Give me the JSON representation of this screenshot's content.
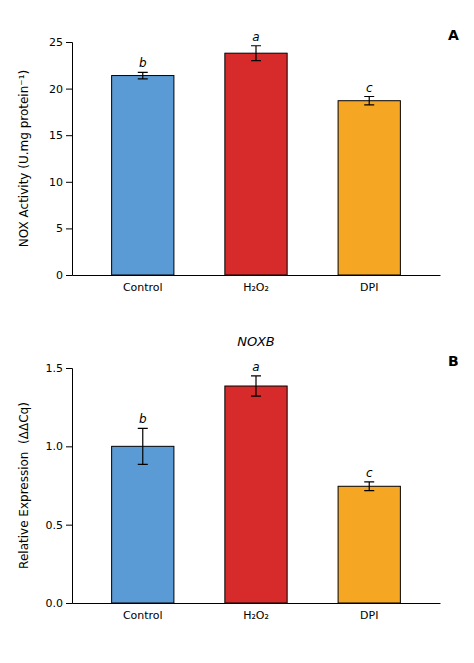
{
  "chart_data": [
    {
      "type": "bar",
      "categories": [
        "Control",
        "H₂O₂",
        "DPI"
      ],
      "values": [
        21.4,
        23.8,
        18.7
      ],
      "errors": [
        0.35,
        0.8,
        0.45
      ],
      "colors": [
        "#5B9BD5",
        "#D72B2B",
        "#F5A623"
      ],
      "ylabel": "NOX Activity (U.mg protein⁻¹)",
      "ylim": [
        0,
        25
      ],
      "yticks": [
        0,
        5,
        10,
        15,
        20,
        25
      ],
      "grid": false,
      "annotations": {
        "panel_label": "A",
        "letters": [
          "b",
          "a",
          "c"
        ]
      }
    },
    {
      "type": "bar",
      "title": "NOXB",
      "categories": [
        "Control",
        "H₂O₂",
        "DPI"
      ],
      "values": [
        1.0,
        1.385,
        0.745
      ],
      "errors": [
        0.115,
        0.065,
        0.028
      ],
      "colors": [
        "#5B9BD5",
        "#D72B2B",
        "#F5A623"
      ],
      "ylabel": "Relative Expression  (ΔΔCq)",
      "ylim": [
        0,
        1.5
      ],
      "yticks": [
        {
          "value": 0,
          "label": "0.0"
        },
        0.5,
        {
          "value": 1,
          "label": "1.0"
        },
        1.5
      ],
      "grid": false,
      "annotations": {
        "panel_label": "B",
        "letters": [
          "b",
          "a",
          "c"
        ]
      }
    }
  ]
}
